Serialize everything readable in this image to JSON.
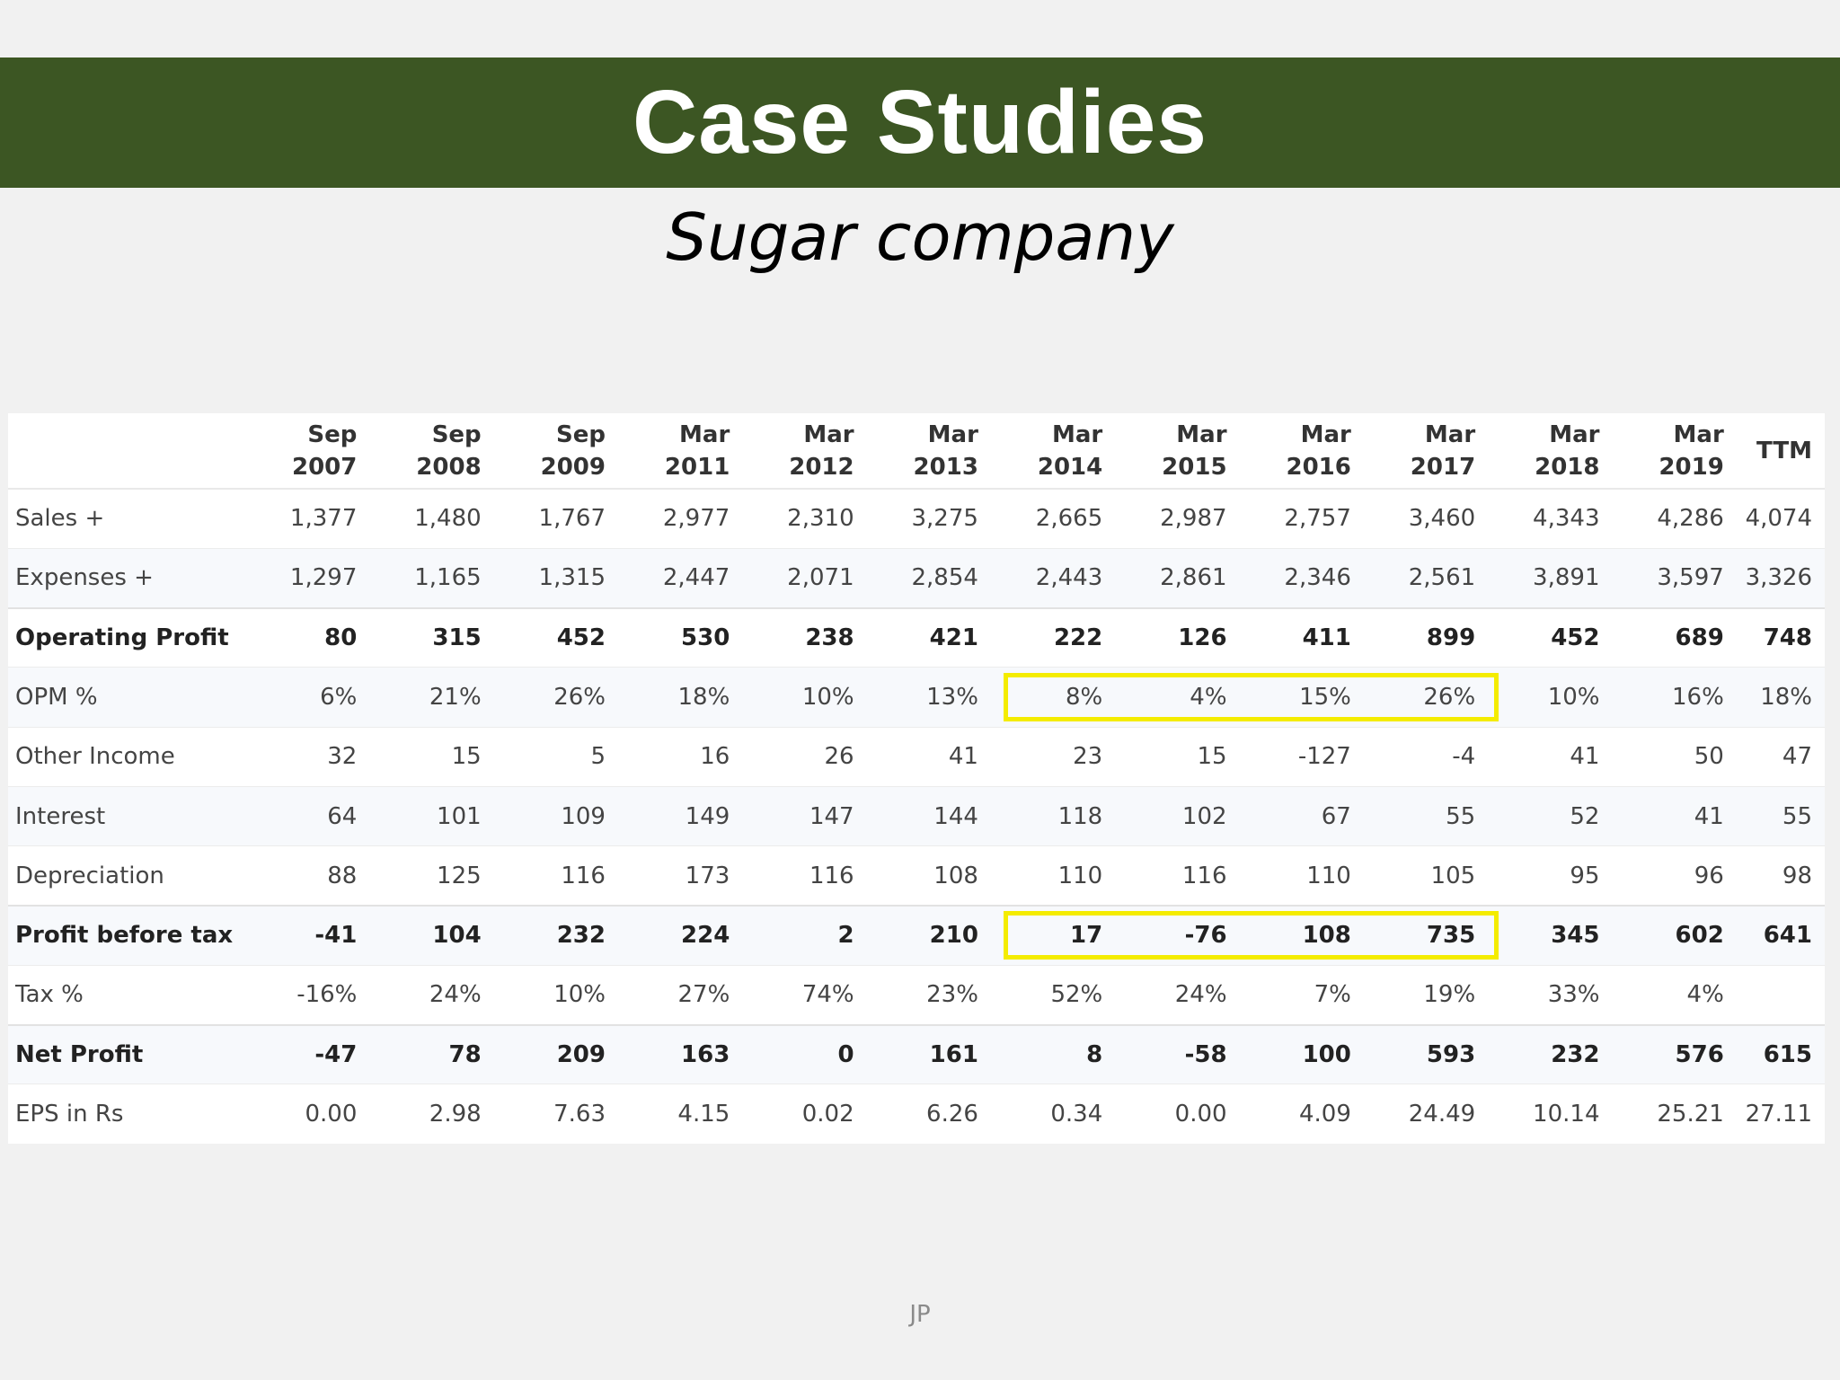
{
  "slide": {
    "title": "Case Studies",
    "subtitle": "Sugar company",
    "footer": "JP"
  },
  "table": {
    "columns": [
      {
        "l1": "Sep",
        "l2": "2007"
      },
      {
        "l1": "Sep",
        "l2": "2008"
      },
      {
        "l1": "Sep",
        "l2": "2009"
      },
      {
        "l1": "Mar",
        "l2": "2011"
      },
      {
        "l1": "Mar",
        "l2": "2012"
      },
      {
        "l1": "Mar",
        "l2": "2013"
      },
      {
        "l1": "Mar",
        "l2": "2014"
      },
      {
        "l1": "Mar",
        "l2": "2015"
      },
      {
        "l1": "Mar",
        "l2": "2016"
      },
      {
        "l1": "Mar",
        "l2": "2017"
      },
      {
        "l1": "Mar",
        "l2": "2018"
      },
      {
        "l1": "Mar",
        "l2": "2019"
      },
      {
        "l1": "TTM",
        "l2": ""
      }
    ],
    "rows": [
      {
        "label": "Sales +",
        "bold": false,
        "values": [
          "1,377",
          "1,480",
          "1,767",
          "2,977",
          "2,310",
          "3,275",
          "2,665",
          "2,987",
          "2,757",
          "3,460",
          "4,343",
          "4,286",
          "4,074"
        ]
      },
      {
        "label": "Expenses +",
        "bold": false,
        "values": [
          "1,297",
          "1,165",
          "1,315",
          "2,447",
          "2,071",
          "2,854",
          "2,443",
          "2,861",
          "2,346",
          "2,561",
          "3,891",
          "3,597",
          "3,326"
        ]
      },
      {
        "label": "Operating Profit",
        "bold": true,
        "values": [
          "80",
          "315",
          "452",
          "530",
          "238",
          "421",
          "222",
          "126",
          "411",
          "899",
          "452",
          "689",
          "748"
        ]
      },
      {
        "label": "OPM %",
        "bold": false,
        "values": [
          "6%",
          "21%",
          "26%",
          "18%",
          "10%",
          "13%",
          "8%",
          "4%",
          "15%",
          "26%",
          "10%",
          "16%",
          "18%"
        ]
      },
      {
        "label": "Other Income",
        "bold": false,
        "values": [
          "32",
          "15",
          "5",
          "16",
          "26",
          "41",
          "23",
          "15",
          "-127",
          "-4",
          "41",
          "50",
          "47"
        ]
      },
      {
        "label": "Interest",
        "bold": false,
        "values": [
          "64",
          "101",
          "109",
          "149",
          "147",
          "144",
          "118",
          "102",
          "67",
          "55",
          "52",
          "41",
          "55"
        ]
      },
      {
        "label": "Depreciation",
        "bold": false,
        "values": [
          "88",
          "125",
          "116",
          "173",
          "116",
          "108",
          "110",
          "116",
          "110",
          "105",
          "95",
          "96",
          "98"
        ]
      },
      {
        "label": "Profit before tax",
        "bold": true,
        "values": [
          "-41",
          "104",
          "232",
          "224",
          "2",
          "210",
          "17",
          "-76",
          "108",
          "735",
          "345",
          "602",
          "641"
        ]
      },
      {
        "label": "Tax %",
        "bold": false,
        "values": [
          "-16%",
          "24%",
          "10%",
          "27%",
          "74%",
          "23%",
          "52%",
          "24%",
          "7%",
          "19%",
          "33%",
          "4%",
          ""
        ]
      },
      {
        "label": "Net Profit",
        "bold": true,
        "values": [
          "-47",
          "78",
          "209",
          "163",
          "0",
          "161",
          "8",
          "-58",
          "100",
          "593",
          "232",
          "576",
          "615"
        ]
      },
      {
        "label": "EPS in Rs",
        "bold": false,
        "values": [
          "0.00",
          "2.98",
          "7.63",
          "4.15",
          "0.02",
          "6.26",
          "0.34",
          "0.00",
          "4.09",
          "24.49",
          "10.14",
          "25.21",
          "27.11"
        ]
      }
    ],
    "highlights": [
      {
        "row": "OPM %",
        "from_column": "Mar 2014",
        "to_column": "Mar 2017"
      },
      {
        "row": "Profit before tax",
        "from_column": "Mar 2014",
        "to_column": "Mar 2017"
      }
    ],
    "highlight_color": "#f4ec00"
  },
  "colors": {
    "banner": "#3c5623",
    "title_text": "#ffffff",
    "background": "#f1f1f1"
  }
}
